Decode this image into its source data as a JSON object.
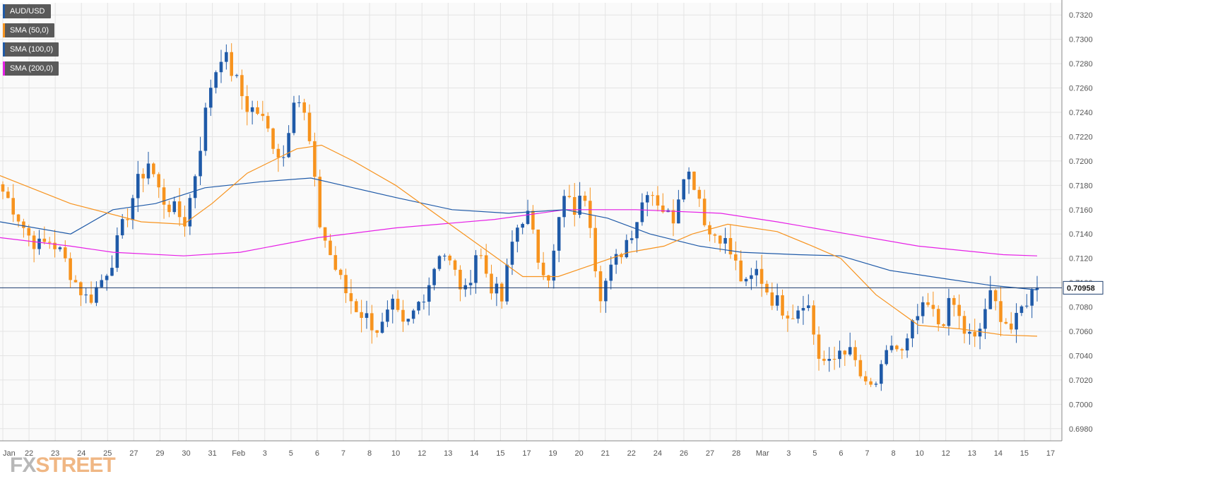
{
  "chart_data": {
    "type": "candlestick",
    "symbol": "AUD/USD",
    "ylim": [
      0.697,
      0.733
    ],
    "y_ticks": [
      "0.7320",
      "0.7300",
      "0.7280",
      "0.7260",
      "0.7240",
      "0.7220",
      "0.7200",
      "0.7180",
      "0.7160",
      "0.7140",
      "0.7120",
      "0.7100",
      "0.7080",
      "0.7060",
      "0.7040",
      "0.7020",
      "0.7000",
      "0.6980"
    ],
    "x_ticks": [
      "Jan",
      "22",
      "23",
      "24",
      "25",
      "27",
      "29",
      "30",
      "31",
      "Feb",
      "3",
      "5",
      "6",
      "7",
      "8",
      "10",
      "12",
      "13",
      "14",
      "15",
      "17",
      "19",
      "20",
      "21",
      "22",
      "24",
      "26",
      "27",
      "28",
      "Mar",
      "3",
      "5",
      "6",
      "7",
      "8",
      "10",
      "12",
      "13",
      "14",
      "15",
      "17"
    ],
    "current_price": "0.70958",
    "current_price_value": 0.70958,
    "colors": {
      "bull": "#1f5aa8",
      "bear": "#f7931e",
      "sma50": "#f7931e",
      "sma100": "#1f5aa8",
      "sma200": "#e620e6",
      "grid": "#e4e4e4",
      "price_line": "#1c3d6e"
    },
    "legend": [
      {
        "label": "AUD/USD",
        "color": "#1f5aa8"
      },
      {
        "label": "SMA (50,0)",
        "color": "#f7931e"
      },
      {
        "label": "SMA (100,0)",
        "color": "#1f5aa8"
      },
      {
        "label": "SMA (200,0)",
        "color": "#e620e6"
      }
    ],
    "watermark": {
      "fx": "FX",
      "street": "STREET"
    },
    "anchors": [
      0.7175,
      0.716,
      0.714,
      0.713,
      0.7135,
      0.712,
      0.71,
      0.7085,
      0.71,
      0.712,
      0.715,
      0.718,
      0.72,
      0.717,
      0.716,
      0.715,
      0.72,
      0.726,
      0.729,
      0.727,
      0.7245,
      0.724,
      0.722,
      0.72,
      0.726,
      0.723,
      0.715,
      0.712,
      0.7095,
      0.708,
      0.707,
      0.706,
      0.708,
      0.706,
      0.708,
      0.71,
      0.713,
      0.711,
      0.709,
      0.713,
      0.71,
      0.7085,
      0.714,
      0.716,
      0.712,
      0.7105,
      0.717,
      0.716,
      0.7175,
      0.709,
      0.711,
      0.713,
      0.715,
      0.718,
      0.7165,
      0.715,
      0.7195,
      0.718,
      0.714,
      0.714,
      0.712,
      0.7095,
      0.711,
      0.709,
      0.708,
      0.7075,
      0.709,
      0.704,
      0.703,
      0.705,
      0.7035,
      0.701,
      0.702,
      0.705,
      0.704,
      0.707,
      0.708,
      0.7065,
      0.7085,
      0.706,
      0.705,
      0.709,
      0.7075,
      0.706,
      0.7085,
      0.7096
    ],
    "candles_count": 200,
    "sma50": [
      [
        0,
        0.7188
      ],
      [
        100,
        0.7165
      ],
      [
        200,
        0.715
      ],
      [
        260,
        0.7148
      ],
      [
        300,
        0.7165
      ],
      [
        350,
        0.719
      ],
      [
        420,
        0.721
      ],
      [
        455,
        0.7213
      ],
      [
        500,
        0.72
      ],
      [
        560,
        0.718
      ],
      [
        620,
        0.7155
      ],
      [
        680,
        0.713
      ],
      [
        740,
        0.7105
      ],
      [
        790,
        0.7105
      ],
      [
        850,
        0.7117
      ],
      [
        890,
        0.7125
      ],
      [
        940,
        0.713
      ],
      [
        980,
        0.714
      ],
      [
        1030,
        0.7148
      ],
      [
        1100,
        0.7142
      ],
      [
        1150,
        0.713
      ],
      [
        1190,
        0.712
      ],
      [
        1240,
        0.709
      ],
      [
        1300,
        0.7065
      ],
      [
        1360,
        0.7062
      ],
      [
        1420,
        0.7057
      ],
      [
        1468,
        0.7056
      ]
    ],
    "sma100": [
      [
        0,
        0.715
      ],
      [
        100,
        0.714
      ],
      [
        160,
        0.716
      ],
      [
        220,
        0.7165
      ],
      [
        290,
        0.7178
      ],
      [
        370,
        0.7183
      ],
      [
        440,
        0.7186
      ],
      [
        500,
        0.7178
      ],
      [
        560,
        0.717
      ],
      [
        640,
        0.716
      ],
      [
        720,
        0.7157
      ],
      [
        800,
        0.716
      ],
      [
        860,
        0.7153
      ],
      [
        920,
        0.714
      ],
      [
        990,
        0.713
      ],
      [
        1050,
        0.7125
      ],
      [
        1130,
        0.7123
      ],
      [
        1190,
        0.7122
      ],
      [
        1260,
        0.711
      ],
      [
        1340,
        0.7103
      ],
      [
        1400,
        0.7098
      ],
      [
        1468,
        0.7094
      ]
    ],
    "sma200": [
      [
        0,
        0.7137
      ],
      [
        100,
        0.713
      ],
      [
        160,
        0.7125
      ],
      [
        260,
        0.7122
      ],
      [
        340,
        0.7125
      ],
      [
        450,
        0.7137
      ],
      [
        560,
        0.7145
      ],
      [
        700,
        0.7152
      ],
      [
        800,
        0.716
      ],
      [
        900,
        0.716
      ],
      [
        1020,
        0.7157
      ],
      [
        1100,
        0.715
      ],
      [
        1200,
        0.714
      ],
      [
        1300,
        0.713
      ],
      [
        1420,
        0.7123
      ],
      [
        1468,
        0.7122
      ]
    ]
  }
}
